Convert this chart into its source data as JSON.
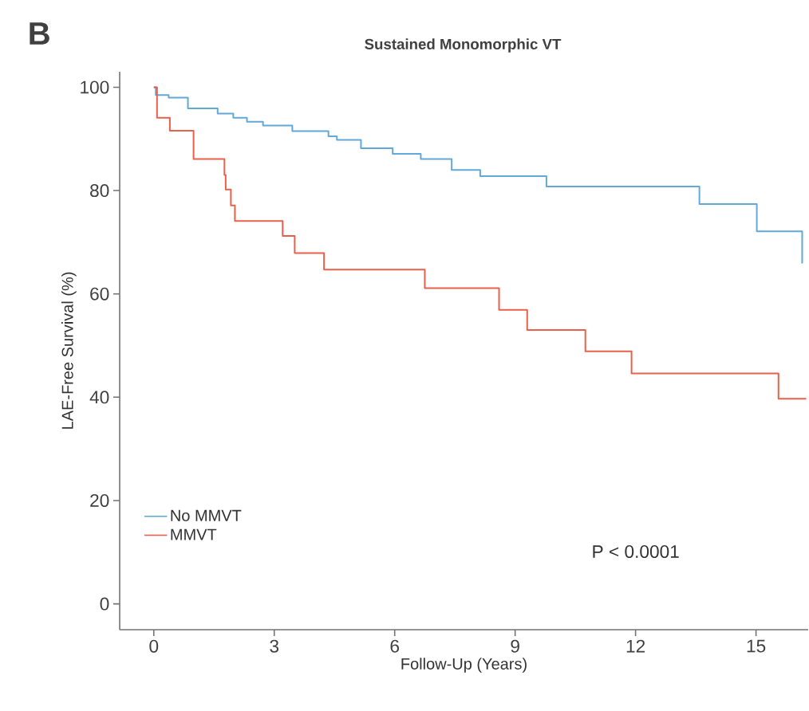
{
  "chart_data": {
    "type": "step",
    "title": "Sustained Monomorphic VT",
    "xlabel": "Follow-Up (Years)",
    "ylabel": "LAE-Free Survival (%)",
    "annotations": [
      "B",
      "P < 0.0001"
    ],
    "xlim": [
      -0.85,
      16.3
    ],
    "ylim": [
      -5,
      103
    ],
    "xticks": [
      0,
      3,
      6,
      9,
      12,
      15
    ],
    "yticks": [
      0,
      20,
      40,
      60,
      80,
      100
    ],
    "legend": "bottom left",
    "grid": false,
    "marker": "none",
    "line_style": "solid",
    "series": [
      {
        "name": "No MMVT",
        "color": "#62a8d8",
        "x": [
          0,
          0.05,
          0.37,
          0.85,
          1.59,
          1.98,
          2.32,
          2.72,
          3.45,
          4.35,
          4.56,
          5.16,
          5.95,
          6.65,
          7.42,
          8.13,
          9.78,
          13.59,
          15.02,
          16.15
        ],
        "values": [
          100,
          98.5,
          98.0,
          95.9,
          94.9,
          94.1,
          93.3,
          92.6,
          91.5,
          90.5,
          89.8,
          88.2,
          87.1,
          86.1,
          84.0,
          82.8,
          80.8,
          77.4,
          72.1,
          65.9
        ]
      },
      {
        "name": "MMVT",
        "color": "#e8604c",
        "x": [
          0,
          0.08,
          0.4,
          0.99,
          1.76,
          1.79,
          1.92,
          2.02,
          3.21,
          3.51,
          4.24,
          6.75,
          8.6,
          9.3,
          10.75,
          11.9,
          15.56,
          16.25
        ],
        "values": [
          100,
          94.1,
          91.6,
          86.1,
          83.0,
          80.2,
          77.1,
          74.1,
          71.2,
          67.9,
          64.7,
          61.1,
          56.9,
          53.0,
          48.9,
          44.6,
          39.7,
          39.7
        ]
      }
    ]
  }
}
